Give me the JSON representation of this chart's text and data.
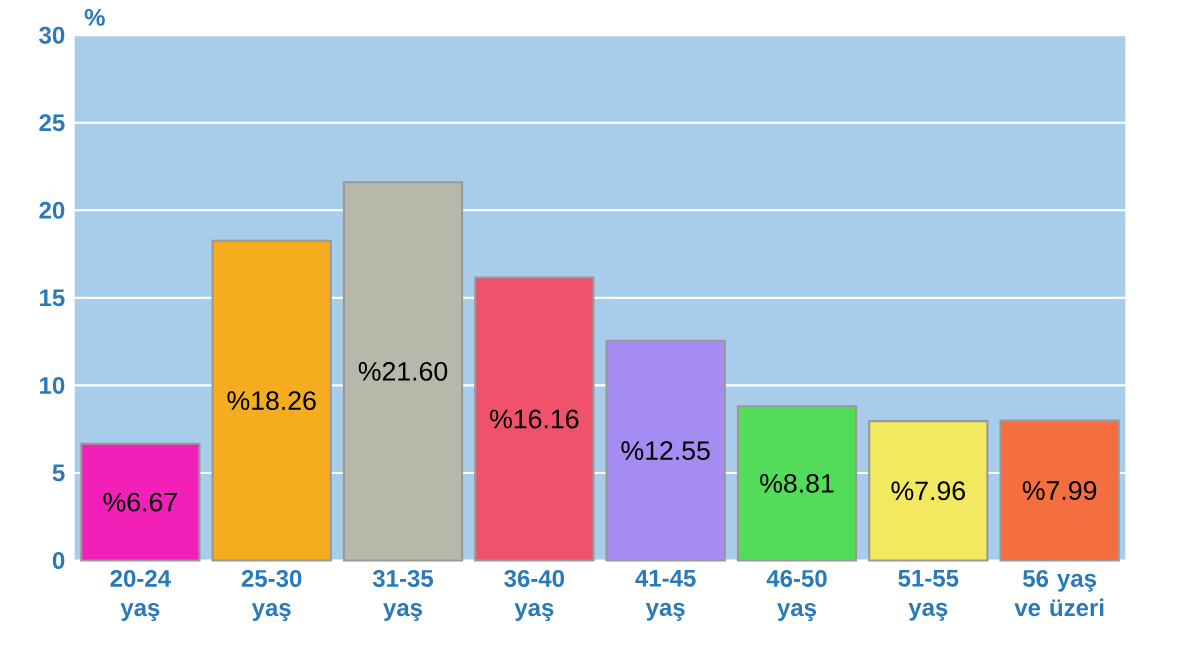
{
  "chart_data": {
    "type": "bar",
    "ylabel": "%",
    "categories": [
      "20-24 yaş",
      "25-30 yaş",
      "31-35 yaş",
      "36-40 yaş",
      "41-45 yaş",
      "46-50 yaş",
      "51-55 yaş",
      "56 yaş ve üzeri"
    ],
    "values": [
      6.67,
      18.26,
      21.6,
      16.16,
      12.55,
      8.81,
      7.96,
      7.99
    ],
    "value_labels": [
      "%6.67",
      "%18.26",
      "%21.60",
      "%16.16",
      "%12.55",
      "%8.81",
      "%7.96",
      "%7.99"
    ],
    "colors": [
      "#f21fb8",
      "#f5ad1f",
      "#b8b8aa",
      "#f0526c",
      "#a58cf2",
      "#52dc5a",
      "#f2e960",
      "#f56e40"
    ],
    "ylim": [
      0,
      30
    ],
    "yticks": [
      0,
      5,
      10,
      15,
      20,
      25,
      30
    ],
    "grid": "y"
  }
}
